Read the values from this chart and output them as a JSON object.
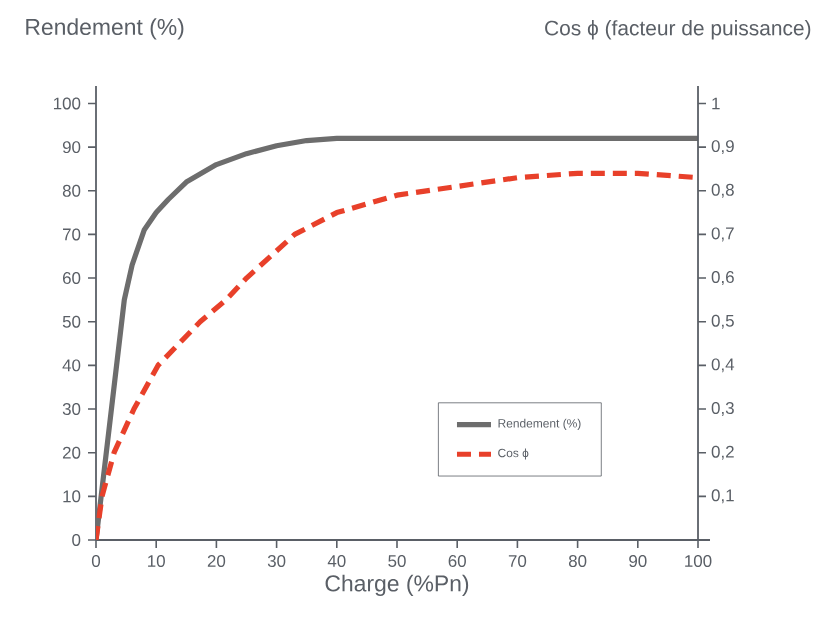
{
  "chart_data": {
    "type": "line",
    "xlabel": "Charge (%Pn)",
    "ylabel": "Rendement (%)",
    "y2label": "Cos ϕ (facteur de puissance)",
    "xlim": [
      0,
      100
    ],
    "xticks": [
      0,
      10,
      20,
      30,
      40,
      50,
      60,
      70,
      80,
      90,
      100
    ],
    "ylim": [
      0,
      104
    ],
    "yticks": [
      0,
      10,
      20,
      30,
      40,
      50,
      60,
      70,
      80,
      90,
      100
    ],
    "y2lim": [
      0,
      1.04
    ],
    "y2ticks": [
      {
        "value": 0.1,
        "label": "0,1"
      },
      {
        "value": 0.2,
        "label": "0,2"
      },
      {
        "value": 0.3,
        "label": "0,3"
      },
      {
        "value": 0.4,
        "label": "0,4"
      },
      {
        "value": 0.5,
        "label": "0,5"
      },
      {
        "value": 0.6,
        "label": "0,6"
      },
      {
        "value": 0.7,
        "label": "0,7"
      },
      {
        "value": 0.8,
        "label": "0,8"
      },
      {
        "value": 0.9,
        "label": "0,9"
      },
      {
        "value": 1,
        "label": "1"
      }
    ],
    "legend": "right",
    "grid": false,
    "series": [
      {
        "name": "Rendement (%)",
        "color": "#6d6d6d",
        "line_style": "solid",
        "x": [
          0,
          4.7,
          6,
          8,
          10,
          12,
          15,
          20,
          25,
          30,
          35,
          40,
          50,
          60,
          70,
          80,
          90,
          100
        ],
        "values": [
          0,
          55,
          63,
          71,
          75,
          78,
          82,
          86,
          88.5,
          90.3,
          91.5,
          92,
          92,
          92,
          92,
          92,
          92,
          92
        ]
      },
      {
        "name": "Cos ϕ",
        "color": "#e8402a",
        "line_style": "dashed",
        "axis": "y2",
        "x": [
          0,
          1,
          3,
          6.3,
          10.3,
          17.3,
          21.6,
          25,
          33,
          40,
          45,
          50,
          60,
          70,
          80,
          85,
          90,
          100
        ],
        "values": [
          0,
          0.1,
          0.2,
          0.3,
          0.4,
          0.5,
          0.55,
          0.6,
          0.7,
          0.75,
          0.77,
          0.79,
          0.81,
          0.83,
          0.84,
          0.84,
          0.84,
          0.83
        ]
      }
    ]
  }
}
